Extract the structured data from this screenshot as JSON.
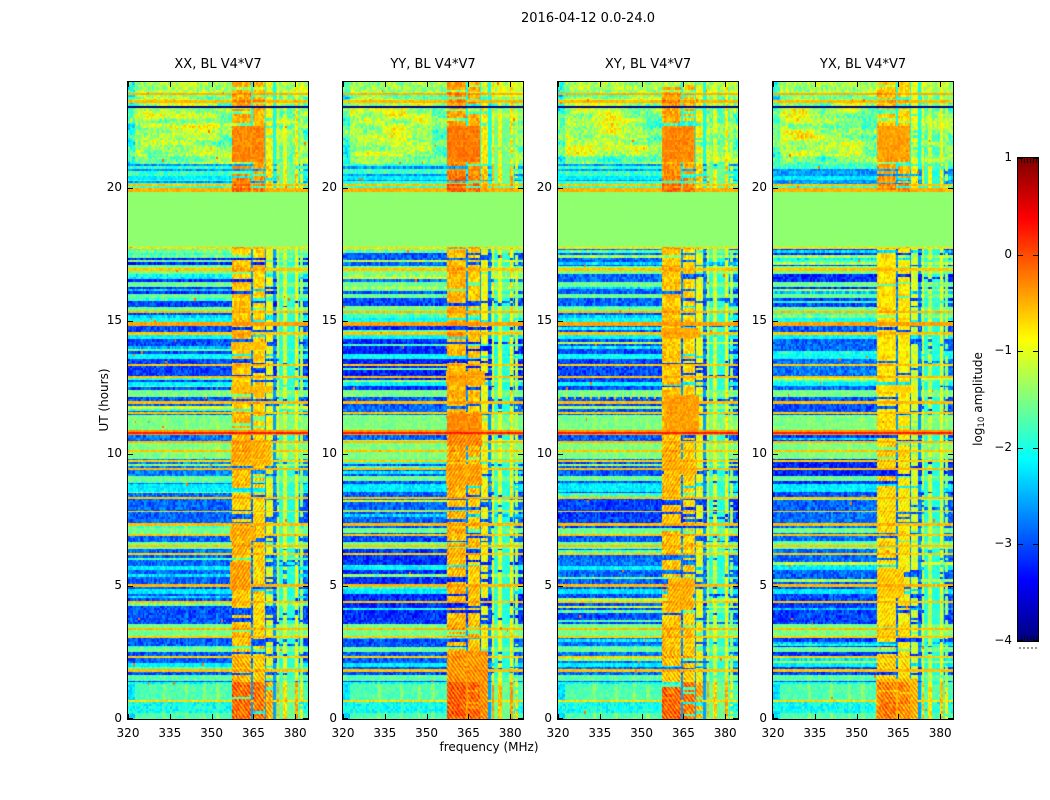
{
  "figure": {
    "title": "2016-04-12 0.0-24.0",
    "background": "#ffffff"
  },
  "colorbar": {
    "label_prefix": "log",
    "label_sub": "10",
    "label_suffix": " amplitude",
    "tick_labels": [
      "1",
      "0",
      "−1",
      "−2",
      "−3",
      "−4"
    ],
    "tick_values": [
      1,
      0,
      -1,
      -2,
      -3,
      -4
    ],
    "vmin": -4,
    "vmax": 1
  },
  "chart_data": {
    "type": "heatmap",
    "title": "2016-04-12 0.0-24.0",
    "xlabel": "frequency (MHz)",
    "ylabel": "UT (hours)",
    "x_range": [
      320,
      384.6
    ],
    "y_range": [
      0,
      24
    ],
    "x_ticks": [
      320,
      335,
      350,
      365,
      380
    ],
    "y_ticks": [
      0,
      5,
      10,
      15,
      20
    ],
    "value_label": "log10 amplitude",
    "value_range": [
      -4,
      1
    ],
    "colormap": "jet",
    "legend_position": "right-colorbar",
    "grid": false,
    "panels": [
      {
        "title": "XX, BL V4*V7",
        "seed": 3,
        "rfi_add": 0,
        "blobs": [
          [
            4.85,
            5.9,
            356.5,
            363.8,
            -0.42
          ],
          [
            6.7,
            7.25,
            356.5,
            366,
            -0.5
          ],
          [
            9.55,
            10.5,
            357,
            371.5,
            -0.52
          ],
          [
            12.3,
            12.55,
            357,
            372,
            -0.58
          ],
          [
            13.9,
            14.2,
            357,
            370,
            -0.6
          ]
        ]
      },
      {
        "title": "YY, BL V4*V7",
        "seed": 11,
        "rfi_add": 0.06,
        "blobs": [
          [
            10.3,
            11.5,
            357.2,
            370,
            -0.38
          ],
          [
            0.0,
            2.55,
            357.2,
            372,
            -0.45
          ],
          [
            8.8,
            9.6,
            357,
            370,
            -0.5
          ],
          [
            12.6,
            13.1,
            357,
            371,
            -0.55
          ]
        ]
      },
      {
        "title": "XY, BL V4*V7",
        "seed": 23,
        "rfi_add": 0,
        "dotted_row": 12.1,
        "blobs": [
          [
            10.75,
            12.2,
            358,
            370.5,
            -0.42
          ],
          [
            4.1,
            5.3,
            359.5,
            368.5,
            -0.5
          ],
          [
            14.35,
            14.75,
            357,
            371,
            -0.48
          ],
          [
            9.2,
            9.8,
            358,
            370,
            -0.55
          ]
        ]
      },
      {
        "title": "YX, BL V4*V7",
        "seed": 31,
        "rfi_add": -0.12,
        "blobs": [
          [
            4.55,
            5.65,
            357.5,
            367,
            -0.5
          ],
          [
            0.0,
            1.5,
            357,
            372,
            -0.42
          ],
          [
            12.3,
            12.6,
            357,
            371,
            -0.6
          ]
        ]
      }
    ],
    "features": {
      "flag_block": {
        "h0": 17.78,
        "h1": 19.86,
        "value": -1.42
      },
      "bright_top": {
        "h0": 19.86,
        "h1": 24,
        "base": -1.55
      },
      "bright_bottom": {
        "h0": 0,
        "h1": 1.38,
        "base": -2.05
      },
      "dark_line": {
        "h": 23.06,
        "w": 0.03,
        "value": -3.95
      },
      "orange_lines": [
        [
          23.55,
          0.05,
          -0.5
        ],
        [
          23.27,
          0.05,
          -0.55
        ],
        [
          20.12,
          0.04,
          -0.6
        ],
        [
          19.93,
          0.08,
          -0.5
        ],
        [
          17.74,
          0.045,
          -0.72
        ],
        [
          16.93,
          0.05,
          -0.6
        ],
        [
          15.33,
          0.05,
          -0.55
        ],
        [
          14.88,
          0.06,
          -0.42
        ],
        [
          14.52,
          0.05,
          -0.6
        ],
        [
          13.33,
          0.04,
          -0.62
        ],
        [
          12.9,
          0.04,
          -0.58
        ],
        [
          11.93,
          0.05,
          -0.55
        ],
        [
          11.53,
          0.04,
          -0.62
        ],
        [
          10.8,
          0.1,
          -0.38
        ],
        [
          10.78,
          0.035,
          0.25
        ],
        [
          10.43,
          0.04,
          -0.55
        ],
        [
          10.1,
          0.04,
          -0.6
        ],
        [
          9.72,
          0.04,
          -0.65
        ],
        [
          9.42,
          0.05,
          -0.55
        ],
        [
          8.33,
          0.04,
          -0.6
        ],
        [
          7.82,
          0.035,
          -0.68
        ],
        [
          7.33,
          0.05,
          -0.55
        ],
        [
          6.93,
          0.04,
          -0.6
        ],
        [
          6.52,
          0.04,
          -0.58
        ],
        [
          6.22,
          0.035,
          -0.65
        ],
        [
          5.03,
          0.05,
          -0.52
        ],
        [
          4.4,
          0.04,
          -0.6
        ],
        [
          3.4,
          0.045,
          -0.55
        ],
        [
          3.08,
          0.04,
          -0.62
        ],
        [
          2.33,
          0.035,
          -0.65
        ],
        [
          1.83,
          0.045,
          -0.58
        ],
        [
          0.68,
          0.03,
          -0.7
        ]
      ],
      "green_rows": [
        [
          20.3,
          20.45,
          -2.2
        ],
        [
          16.75,
          17.05,
          -1.55
        ],
        [
          16.28,
          16.45,
          -1.6
        ],
        [
          15.85,
          16.0,
          -1.62
        ],
        [
          15.38,
          15.52,
          -1.58
        ],
        [
          14.95,
          15.12,
          -2.1
        ],
        [
          14.3,
          14.45,
          -2.15
        ],
        [
          13.55,
          13.75,
          -2.1
        ],
        [
          12.55,
          12.7,
          -2.15
        ],
        [
          12.12,
          12.38,
          -1.55
        ],
        [
          10.85,
          11.45,
          -1.52
        ],
        [
          9.78,
          10.38,
          -1.5
        ],
        [
          8.95,
          9.15,
          -1.6
        ],
        [
          8.55,
          8.85,
          -2.2
        ],
        [
          7.0,
          7.2,
          -1.6
        ],
        [
          6.42,
          6.68,
          -1.55
        ],
        [
          5.6,
          5.75,
          -2.2
        ],
        [
          4.72,
          4.88,
          -2.25
        ],
        [
          3.12,
          3.58,
          -1.55
        ],
        [
          2.52,
          2.7,
          -1.62
        ],
        [
          1.95,
          2.12,
          -2.2
        ],
        [
          1.45,
          1.66,
          -1.7
        ]
      ],
      "rfi_bands": [
        {
          "f0": 357.2,
          "f1": 364.2,
          "value": -0.62,
          "skip": 0.22,
          "fringe": true
        },
        {
          "f0": 364.7,
          "f1": 369.2,
          "value": -0.7,
          "skip": 0.26,
          "fringe": true
        },
        {
          "f0": 369.7,
          "f1": 372.0,
          "value": -1.0,
          "skip": 0.3,
          "fringe": true
        },
        {
          "f0": 373.3,
          "f1": 374.2,
          "value": -1.05,
          "skip": 0.12
        },
        {
          "f0": 375.7,
          "f1": 376.9,
          "value": -1.15,
          "skip": 0.15
        },
        {
          "f0": 379.8,
          "f1": 381.1,
          "value": -0.95,
          "skip": 0.12
        },
        {
          "f0": 381.9,
          "f1": 382.9,
          "value": -1.35,
          "skip": 0.3
        },
        {
          "f0": 374.0,
          "f1": 381.5,
          "value": -1.95,
          "skip": 0.05,
          "pale": true
        }
      ],
      "gap_cols": [
        [
          364.2,
          364.7
        ],
        [
          369.2,
          369.7
        ],
        [
          372.0,
          373.2
        ]
      ],
      "faint_cols": [
        333,
        341,
        347.5,
        352.3
      ],
      "shared_blobs": [
        [
          21.0,
          22.35,
          357.2,
          369.2,
          -0.3
        ]
      ]
    }
  }
}
